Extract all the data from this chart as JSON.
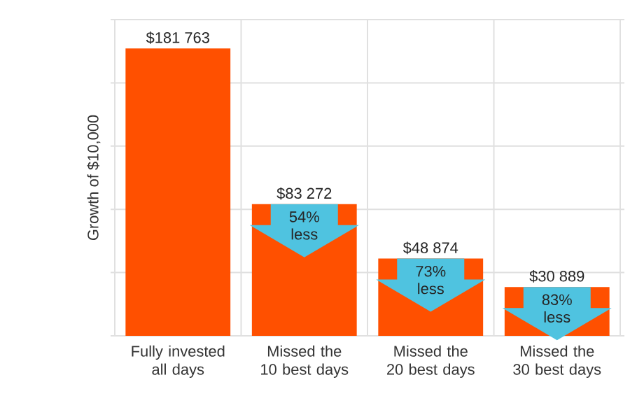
{
  "chart_data": {
    "type": "bar",
    "ylabel": "Growth of $10,000",
    "categories": [
      "Fully invested all days",
      "Missed the 10 best days",
      "Missed the 20 best days",
      "Missed the 30 best days"
    ],
    "values": [
      181763,
      83272,
      48874,
      30889
    ],
    "color": "#ff5000",
    "value_labels": [
      "$181 763",
      "$83 272",
      "$48 874",
      "$30 889"
    ],
    "ylim": [
      0,
      200000
    ],
    "yticks": [
      {
        "value": 0,
        "label": null
      },
      {
        "value": 40000,
        "label": null
      },
      {
        "value": 80000,
        "label": null
      },
      {
        "value": 120000,
        "label": null
      },
      {
        "value": 160000,
        "label": null
      },
      {
        "value": 200000,
        "label": null
      }
    ],
    "grid": true,
    "annotations": [
      {
        "text": "54% less",
        "x": "Missed the 10 best days",
        "y": 83272
      },
      {
        "text": "73% less",
        "x": "Missed the 20 best days",
        "y": 48874
      },
      {
        "text": "83% less",
        "x": "Missed the 30 best days",
        "y": 30889
      }
    ]
  }
}
